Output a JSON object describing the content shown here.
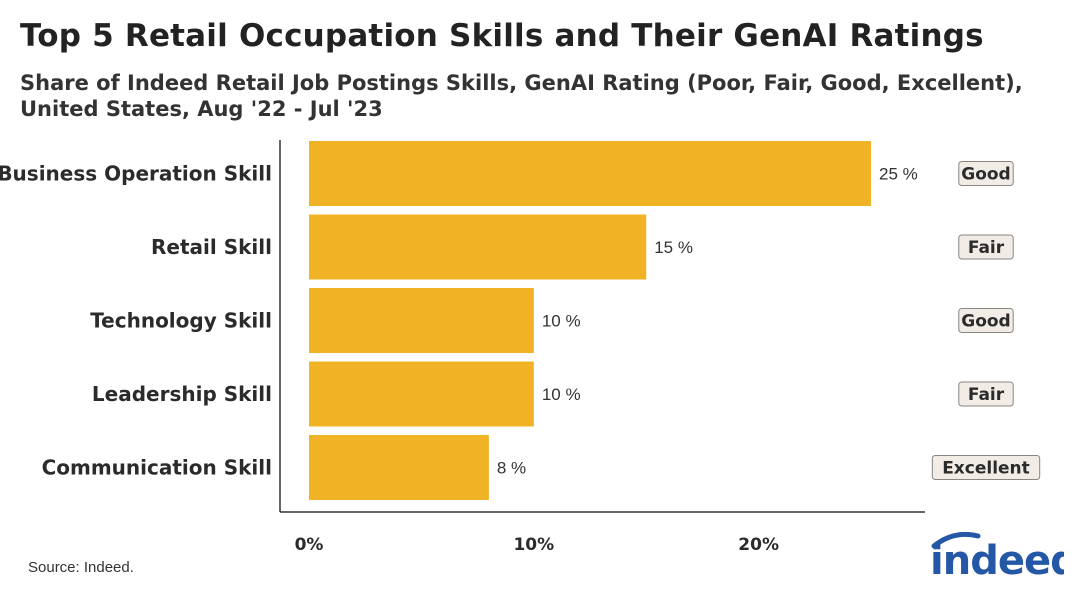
{
  "header": {
    "title": "Top 5 Retail Occupation Skills and Their GenAI Ratings",
    "subtitle": "Share of Indeed Retail Job Postings Skills, GenAI Rating (Poor, Fair, Good, Excellent), United States, Aug '22 - Jul '23"
  },
  "footer": {
    "source": "Source: Indeed.",
    "logo_text": "indeed"
  },
  "colors": {
    "bar": "#EFB325",
    "badge_bg": "#F2ECE6",
    "badge_border": "#8A8580",
    "brand": "#2557A7"
  },
  "chart_data": {
    "type": "bar",
    "orientation": "horizontal",
    "categories": [
      "Business Operation Skill",
      "Retail Skill",
      "Technology Skill",
      "Leadership Skill",
      "Communication Skill"
    ],
    "values": [
      25,
      15,
      10,
      10,
      8
    ],
    "value_labels": [
      "25 %",
      "15 %",
      "10 %",
      "10 %",
      "8 %"
    ],
    "ratings": [
      "Good",
      "Fair",
      "Good",
      "Fair",
      "Excellent"
    ],
    "xticks": [
      0,
      10,
      20
    ],
    "xtick_labels": [
      "0%",
      "10%",
      "20%"
    ],
    "xlim": [
      0,
      27.4
    ],
    "grid": false
  }
}
